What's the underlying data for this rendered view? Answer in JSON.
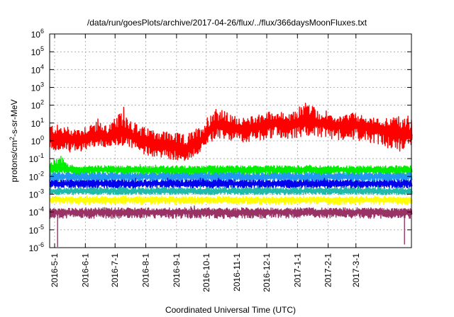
{
  "chart_data": {
    "type": "line",
    "title": "/data/run/goesPlots/archive/2017-04-26/flux/../flux/366daysMoonFluxes.txt",
    "xlabel": "Coordinated Universal Time (UTC)",
    "ylabel": "protons/cm²-s-sr-MeV",
    "yscale": "log",
    "ylim": [
      1e-06,
      1000000.0
    ],
    "xlim": [
      "2016-04-26",
      "2017-04-26"
    ],
    "grid": true,
    "legend": "none",
    "x_ticks": [
      "2016-5-1",
      "2016-6-1",
      "2016-7-1",
      "2016-8-1",
      "2016-9-1",
      "2016-10-1",
      "2016-11-1",
      "2016-12-1",
      "2017-1-1",
      "2017-2-1",
      "2017-3-1"
    ],
    "y_ticks": [
      {
        "value": 1e-06,
        "base": "10",
        "exp": "-6"
      },
      {
        "value": 1e-05,
        "base": "10",
        "exp": "-5"
      },
      {
        "value": 0.0001,
        "base": "10",
        "exp": "-4"
      },
      {
        "value": 0.001,
        "base": "10",
        "exp": "-3"
      },
      {
        "value": 0.01,
        "base": "10",
        "exp": "-2"
      },
      {
        "value": 0.1,
        "base": "10",
        "exp": "-1"
      },
      {
        "value": 1,
        "base": "10",
        "exp": "0"
      },
      {
        "value": 10,
        "base": "10",
        "exp": "1"
      },
      {
        "value": 100,
        "base": "10",
        "exp": "2"
      },
      {
        "value": 1000,
        "base": "10",
        "exp": "3"
      },
      {
        "value": 10000,
        "base": "10",
        "exp": "4"
      },
      {
        "value": 100000,
        "base": "10",
        "exp": "5"
      },
      {
        "value": 1000000,
        "base": "10",
        "exp": "6"
      }
    ],
    "series": [
      {
        "color": "#ff0000",
        "x": [
          "2016-04-26",
          "2016-05-10",
          "2016-05-25",
          "2016-06-10",
          "2016-06-25",
          "2016-07-10",
          "2016-07-25",
          "2016-08-10",
          "2016-08-25",
          "2016-09-10",
          "2016-09-25",
          "2016-10-10",
          "2016-10-25",
          "2016-11-10",
          "2016-11-25",
          "2016-12-10",
          "2016-12-25",
          "2017-01-10",
          "2017-01-25",
          "2017-02-10",
          "2017-02-25",
          "2017-03-10",
          "2017-03-25",
          "2017-04-10",
          "2017-04-26"
        ],
        "y": [
          1.5,
          1.2,
          1.0,
          2.0,
          1.5,
          3.0,
          1.0,
          0.8,
          0.5,
          0.3,
          1.0,
          8,
          6,
          5,
          7,
          10,
          8,
          12,
          10,
          8,
          9,
          6,
          5,
          3,
          2
        ],
        "y_low": [
          0.25,
          0.2,
          0.2,
          0.4,
          0.3,
          0.5,
          0.15,
          0.1,
          0.07,
          0.06,
          0.2,
          1.0,
          0.8,
          0.7,
          0.8,
          1.2,
          1.0,
          1.5,
          1.2,
          0.9,
          1.0,
          0.7,
          0.5,
          0.15,
          0.4
        ],
        "y_high": [
          20,
          15,
          12,
          25,
          20,
          200,
          15,
          10,
          8,
          5,
          15,
          300,
          60,
          30,
          80,
          100,
          50,
          800,
          60,
          30,
          80,
          40,
          30,
          60,
          100
        ]
      },
      {
        "color": "#00ee00",
        "x": [
          "2016-04-26",
          "2016-05-05",
          "2016-05-20",
          "2016-06-10",
          "2016-07-10",
          "2016-08-10",
          "2016-09-10",
          "2016-10-10",
          "2016-11-10",
          "2016-12-10",
          "2017-01-10",
          "2017-02-10",
          "2017-03-10",
          "2017-04-10",
          "2017-04-26"
        ],
        "y": [
          0.025,
          0.03,
          0.022,
          0.025,
          0.024,
          0.023,
          0.022,
          0.025,
          0.024,
          0.025,
          0.025,
          0.024,
          0.024,
          0.025,
          0.025
        ],
        "y_low": [
          0.01,
          0.012,
          0.009,
          0.01,
          0.01,
          0.009,
          0.009,
          0.01,
          0.01,
          0.01,
          0.01,
          0.01,
          0.01,
          0.01,
          0.01
        ],
        "y_high": [
          0.06,
          0.4,
          0.05,
          0.05,
          0.05,
          0.05,
          0.05,
          0.05,
          0.05,
          0.05,
          0.05,
          0.05,
          0.05,
          0.05,
          0.05
        ]
      },
      {
        "color": "#2299ee",
        "x": [
          "2016-04-26",
          "2016-06-10",
          "2016-08-10",
          "2016-10-10",
          "2016-12-10",
          "2017-02-10",
          "2017-04-26"
        ],
        "y": [
          0.01,
          0.01,
          0.01,
          0.01,
          0.01,
          0.01,
          0.01
        ],
        "y_low": [
          0.004,
          0.004,
          0.004,
          0.004,
          0.004,
          0.004,
          0.004
        ],
        "y_high": [
          0.02,
          0.02,
          0.02,
          0.02,
          0.02,
          0.02,
          0.02
        ]
      },
      {
        "color": "#0000ee",
        "x": [
          "2016-04-26",
          "2016-06-10",
          "2016-08-10",
          "2016-10-10",
          "2016-12-10",
          "2017-02-10",
          "2017-04-26"
        ],
        "y": [
          0.004,
          0.004,
          0.004,
          0.004,
          0.004,
          0.004,
          0.004
        ],
        "y_low": [
          0.002,
          0.002,
          0.002,
          0.002,
          0.002,
          0.002,
          0.002
        ],
        "y_high": [
          0.008,
          0.008,
          0.008,
          0.008,
          0.008,
          0.008,
          0.008
        ]
      },
      {
        "color": "#22bbaa",
        "x": [
          "2016-04-26",
          "2016-06-10",
          "2016-08-10",
          "2016-10-10",
          "2016-12-10",
          "2017-02-10",
          "2017-04-26"
        ],
        "y": [
          0.0015,
          0.0015,
          0.0015,
          0.0015,
          0.0015,
          0.0015,
          0.0015
        ],
        "y_low": [
          0.0009,
          0.0009,
          0.0009,
          0.0009,
          0.0009,
          0.0009,
          0.0009
        ],
        "y_high": [
          0.003,
          0.003,
          0.003,
          0.003,
          0.003,
          0.003,
          0.003
        ]
      },
      {
        "color": "#ffff00",
        "x": [
          "2016-04-26",
          "2016-06-10",
          "2016-08-10",
          "2016-10-10",
          "2016-12-10",
          "2017-02-10",
          "2017-04-26"
        ],
        "y": [
          0.0005,
          0.0005,
          0.0005,
          0.0005,
          0.0005,
          0.0005,
          0.0005
        ],
        "y_low": [
          0.00025,
          0.00025,
          0.00025,
          0.00025,
          0.00025,
          0.00025,
          0.00025
        ],
        "y_high": [
          0.0008,
          0.0008,
          0.0008,
          0.0008,
          0.0008,
          0.0008,
          0.0008
        ]
      },
      {
        "color": "#993366",
        "x": [
          "2016-04-26",
          "2016-06-10",
          "2016-08-10",
          "2016-10-10",
          "2016-12-10",
          "2017-02-10",
          "2017-04-26"
        ],
        "y": [
          0.0001,
          0.0001,
          0.0001,
          0.0001,
          0.0001,
          0.0001,
          0.0001
        ],
        "y_low": [
          4e-05,
          4e-05,
          4e-05,
          4e-05,
          4e-05,
          4e-05,
          4e-05
        ],
        "y_high": [
          0.00022,
          0.00022,
          0.00022,
          0.00022,
          0.00022,
          0.00022,
          0.00022
        ],
        "dips": [
          {
            "x": "2016-05-04",
            "y": 1e-06
          },
          {
            "x": "2017-04-19",
            "y": 1.5e-06
          }
        ]
      }
    ]
  }
}
